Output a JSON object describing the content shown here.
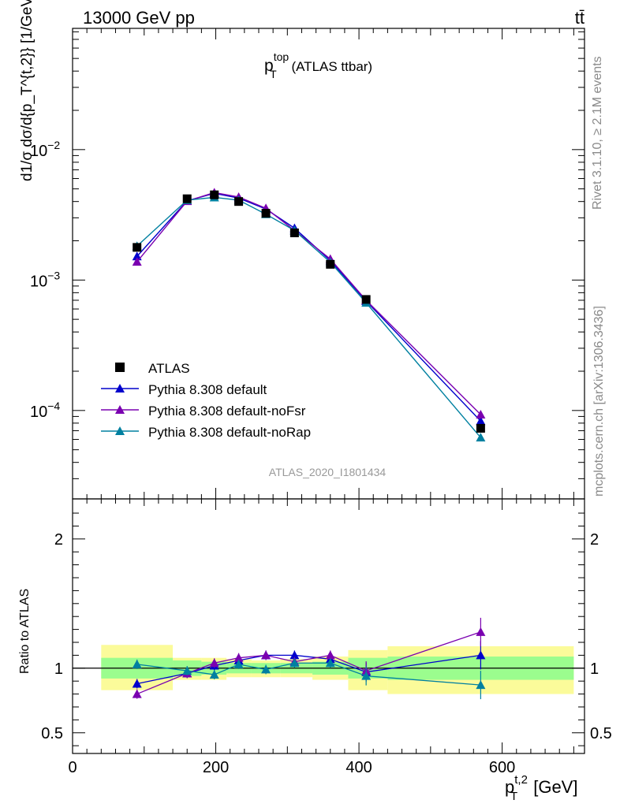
{
  "header": {
    "left": "13000 GeV pp",
    "right": "tt̄"
  },
  "side": {
    "top": "Rivet 3.1.10, ≥ 2.1M events",
    "bottom": "mcplots.cern.ch [arXiv:1306.3436]"
  },
  "watermark": "ATLAS_2020_I1801434",
  "chart_data": [
    {
      "type": "line",
      "title": {
        "base": "p",
        "sup": "top",
        "sub": "T",
        "rest": " (ATLAS ttbar)"
      },
      "ylabel": "d1/σ dσ/d{p_T^{t,2}} [1/GeV]",
      "xlim": [
        0,
        715
      ],
      "ylim": [
        2.1e-05,
        0.085
      ],
      "yscale": "log",
      "grid": false,
      "yticks": [
        {
          "v": 0.01,
          "base": "10",
          "exp": "−2"
        },
        {
          "v": 0.001,
          "base": "10",
          "exp": "−3"
        },
        {
          "v": 0.0001,
          "base": "10",
          "exp": "−4"
        }
      ],
      "legend": {
        "position": "bottom-left",
        "entries": [
          {
            "label": "ATLAS",
            "color": "#000000",
            "marker": "square"
          },
          {
            "label": "Pythia 8.308 default",
            "color": "#0000cc",
            "marker": "triangle"
          },
          {
            "label": "Pythia 8.308 default-noFsr",
            "color": "#7a00b0",
            "marker": "triangle"
          },
          {
            "label": "Pythia 8.308 default-noRap",
            "color": "#0080a0",
            "marker": "triangle"
          }
        ]
      },
      "x": [
        90,
        160,
        198,
        232,
        270,
        310,
        360,
        410,
        570
      ],
      "series": [
        {
          "name": "ATLAS",
          "values": [
            0.00178,
            0.0042,
            0.0045,
            0.004,
            0.00325,
            0.0023,
            0.00132,
            0.00071,
            7.3e-05
          ]
        },
        {
          "name": "Pythia 8.308 default",
          "values": [
            0.00152,
            0.00405,
            0.00462,
            0.00425,
            0.0035,
            0.0025,
            0.00141,
            0.00069,
            8.3e-05
          ]
        },
        {
          "name": "Pythia 8.308 default-noFsr",
          "values": [
            0.00138,
            0.00403,
            0.00468,
            0.00433,
            0.00355,
            0.0024,
            0.00145,
            0.0007,
            9.3e-05
          ]
        },
        {
          "name": "Pythia 8.308 default-noRap",
          "values": [
            0.00182,
            0.0041,
            0.0043,
            0.0041,
            0.0032,
            0.0024,
            0.00137,
            0.00067,
            6.2e-05
          ]
        }
      ]
    },
    {
      "type": "line",
      "ylabel": "Ratio to ATLAS",
      "xlabel": {
        "base": "p",
        "sup": "t,2",
        "sub": "T",
        "rest": " [GeV]"
      },
      "xlim": [
        0,
        715
      ],
      "ylim": [
        0.34,
        2.31
      ],
      "xticks": [
        0,
        200,
        400,
        600
      ],
      "xticklabels": [
        "0",
        "200",
        "400",
        "600"
      ],
      "yticks": [
        0.5,
        1,
        2
      ],
      "yticklabels": [
        "0.5",
        "1",
        "2"
      ],
      "bins": [
        {
          "lo": 40,
          "hi": 140,
          "in": [
            0.92,
            1.08
          ],
          "out": [
            0.83,
            1.18
          ]
        },
        {
          "lo": 140,
          "hi": 180,
          "in": [
            0.94,
            1.06
          ],
          "out": [
            0.91,
            1.08
          ]
        },
        {
          "lo": 180,
          "hi": 215,
          "in": [
            0.95,
            1.05
          ],
          "out": [
            0.91,
            1.08
          ]
        },
        {
          "lo": 215,
          "hi": 250,
          "in": [
            0.96,
            1.04
          ],
          "out": [
            0.93,
            1.07
          ]
        },
        {
          "lo": 250,
          "hi": 290,
          "in": [
            0.96,
            1.04
          ],
          "out": [
            0.93,
            1.06
          ]
        },
        {
          "lo": 290,
          "hi": 335,
          "in": [
            0.96,
            1.04
          ],
          "out": [
            0.93,
            1.07
          ]
        },
        {
          "lo": 335,
          "hi": 385,
          "in": [
            0.95,
            1.05
          ],
          "out": [
            0.91,
            1.09
          ]
        },
        {
          "lo": 385,
          "hi": 440,
          "in": [
            0.92,
            1.08
          ],
          "out": [
            0.83,
            1.14
          ]
        },
        {
          "lo": 440,
          "hi": 700,
          "in": [
            0.91,
            1.09
          ],
          "out": [
            0.8,
            1.17
          ]
        }
      ],
      "series": [
        {
          "name": "Pythia 8.308 default",
          "values": [
            0.88,
            0.96,
            1.02,
            1.06,
            1.1,
            1.1,
            1.07,
            0.97,
            1.1
          ]
        },
        {
          "name": "Pythia 8.308 default-noFsr",
          "values": [
            0.8,
            0.96,
            1.04,
            1.08,
            1.1,
            1.05,
            1.1,
            0.98,
            1.28
          ]
        },
        {
          "name": "Pythia 8.308 default-noRap",
          "values": [
            1.03,
            0.98,
            0.95,
            1.03,
            0.99,
            1.04,
            1.04,
            0.94,
            0.87
          ]
        }
      ]
    }
  ]
}
